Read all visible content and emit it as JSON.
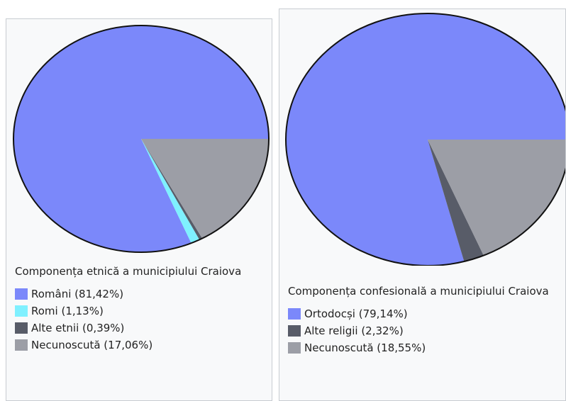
{
  "chart_data": [
    {
      "type": "pie",
      "title": "Componența etnică a municipiului Craiova",
      "categories": [
        "Români (81,42%)",
        "Romi (1,13%)",
        "Alte etnii (0,39%)",
        "Necunoscută (17,06%)"
      ],
      "values": [
        81.42,
        1.13,
        0.39,
        17.06
      ],
      "colors": [
        "#7b88fa",
        "#7ff0ff",
        "#585c68",
        "#9c9ea6"
      ]
    },
    {
      "type": "pie",
      "title": "Componența confesională a municipiului Craiova",
      "categories": [
        "Ortodocși (79,14%)",
        "Alte religii (2,32%)",
        "Necunoscută (18,55%)"
      ],
      "values": [
        79.14,
        2.32,
        18.55
      ],
      "colors": [
        "#7b88fa",
        "#585c68",
        "#9c9ea6"
      ]
    }
  ]
}
